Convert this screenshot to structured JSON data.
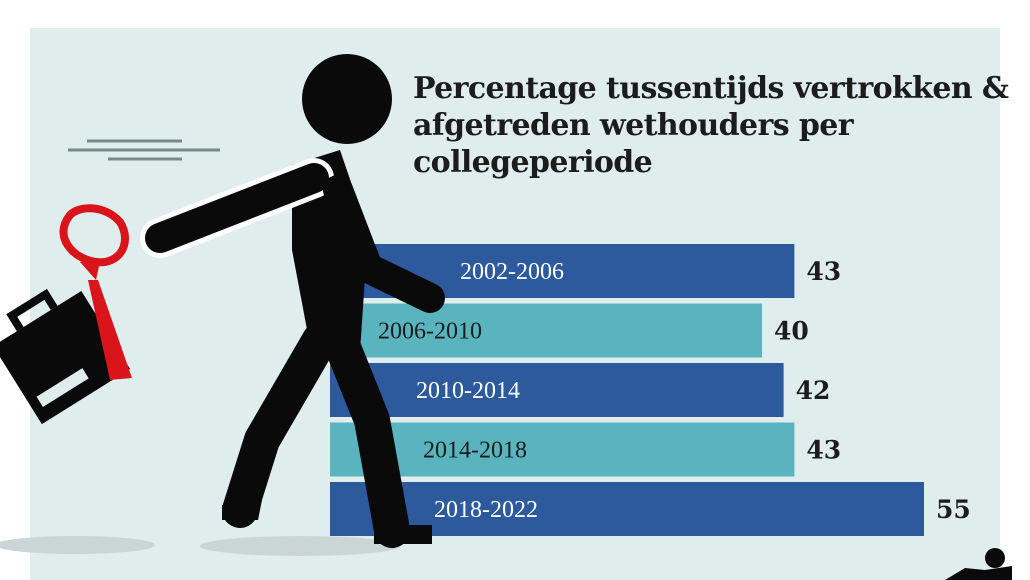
{
  "chart_data": {
    "type": "bar",
    "orientation": "horizontal",
    "title": "Percentage tussentijds vertrokken & afgetreden wethouders per collegeperiode",
    "categories": [
      "2002-2006",
      "2006-2010",
      "2010-2014",
      "2014-2018",
      "2018-2022"
    ],
    "values": [
      43,
      40,
      42,
      43,
      55
    ],
    "value_labels": [
      "43",
      "40",
      "42",
      "43",
      "55"
    ],
    "bar_colors": [
      "#2c5a9c",
      "#5ab4bf",
      "#2c5a9c",
      "#5ab4bf",
      "#2c5a9c"
    ],
    "xlim": [
      0,
      55
    ],
    "grid": false,
    "legend": "none"
  },
  "colors": {
    "background": "#dfeeed",
    "figure": "#0a0a0a",
    "tie": "#d9141b",
    "shadow": "#c9d6d5"
  },
  "illustration": {
    "figure_icon": "walking-man-icon",
    "briefcase_icon": "briefcase-icon",
    "tie_icon": "necktie-icon"
  }
}
